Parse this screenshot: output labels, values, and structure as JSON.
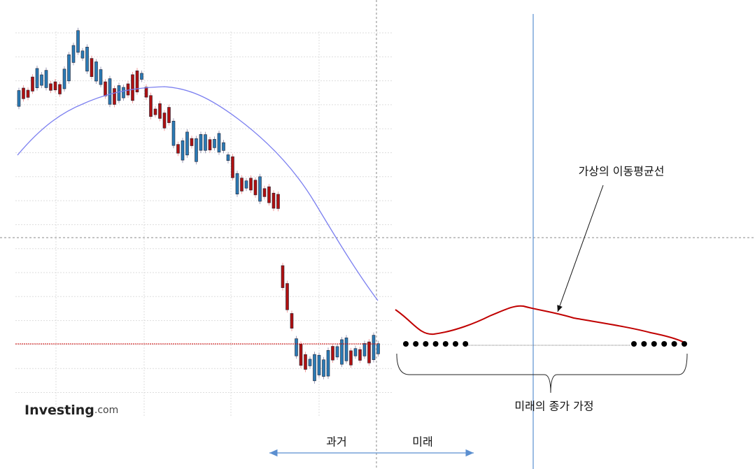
{
  "logo": {
    "brand": "Investing",
    "suffix": ".com"
  },
  "annotations": {
    "moving_average": "가상의 이동평균선",
    "assumed_close": "미래의 종가 가정",
    "past": "과거",
    "future": "미래"
  }
}
